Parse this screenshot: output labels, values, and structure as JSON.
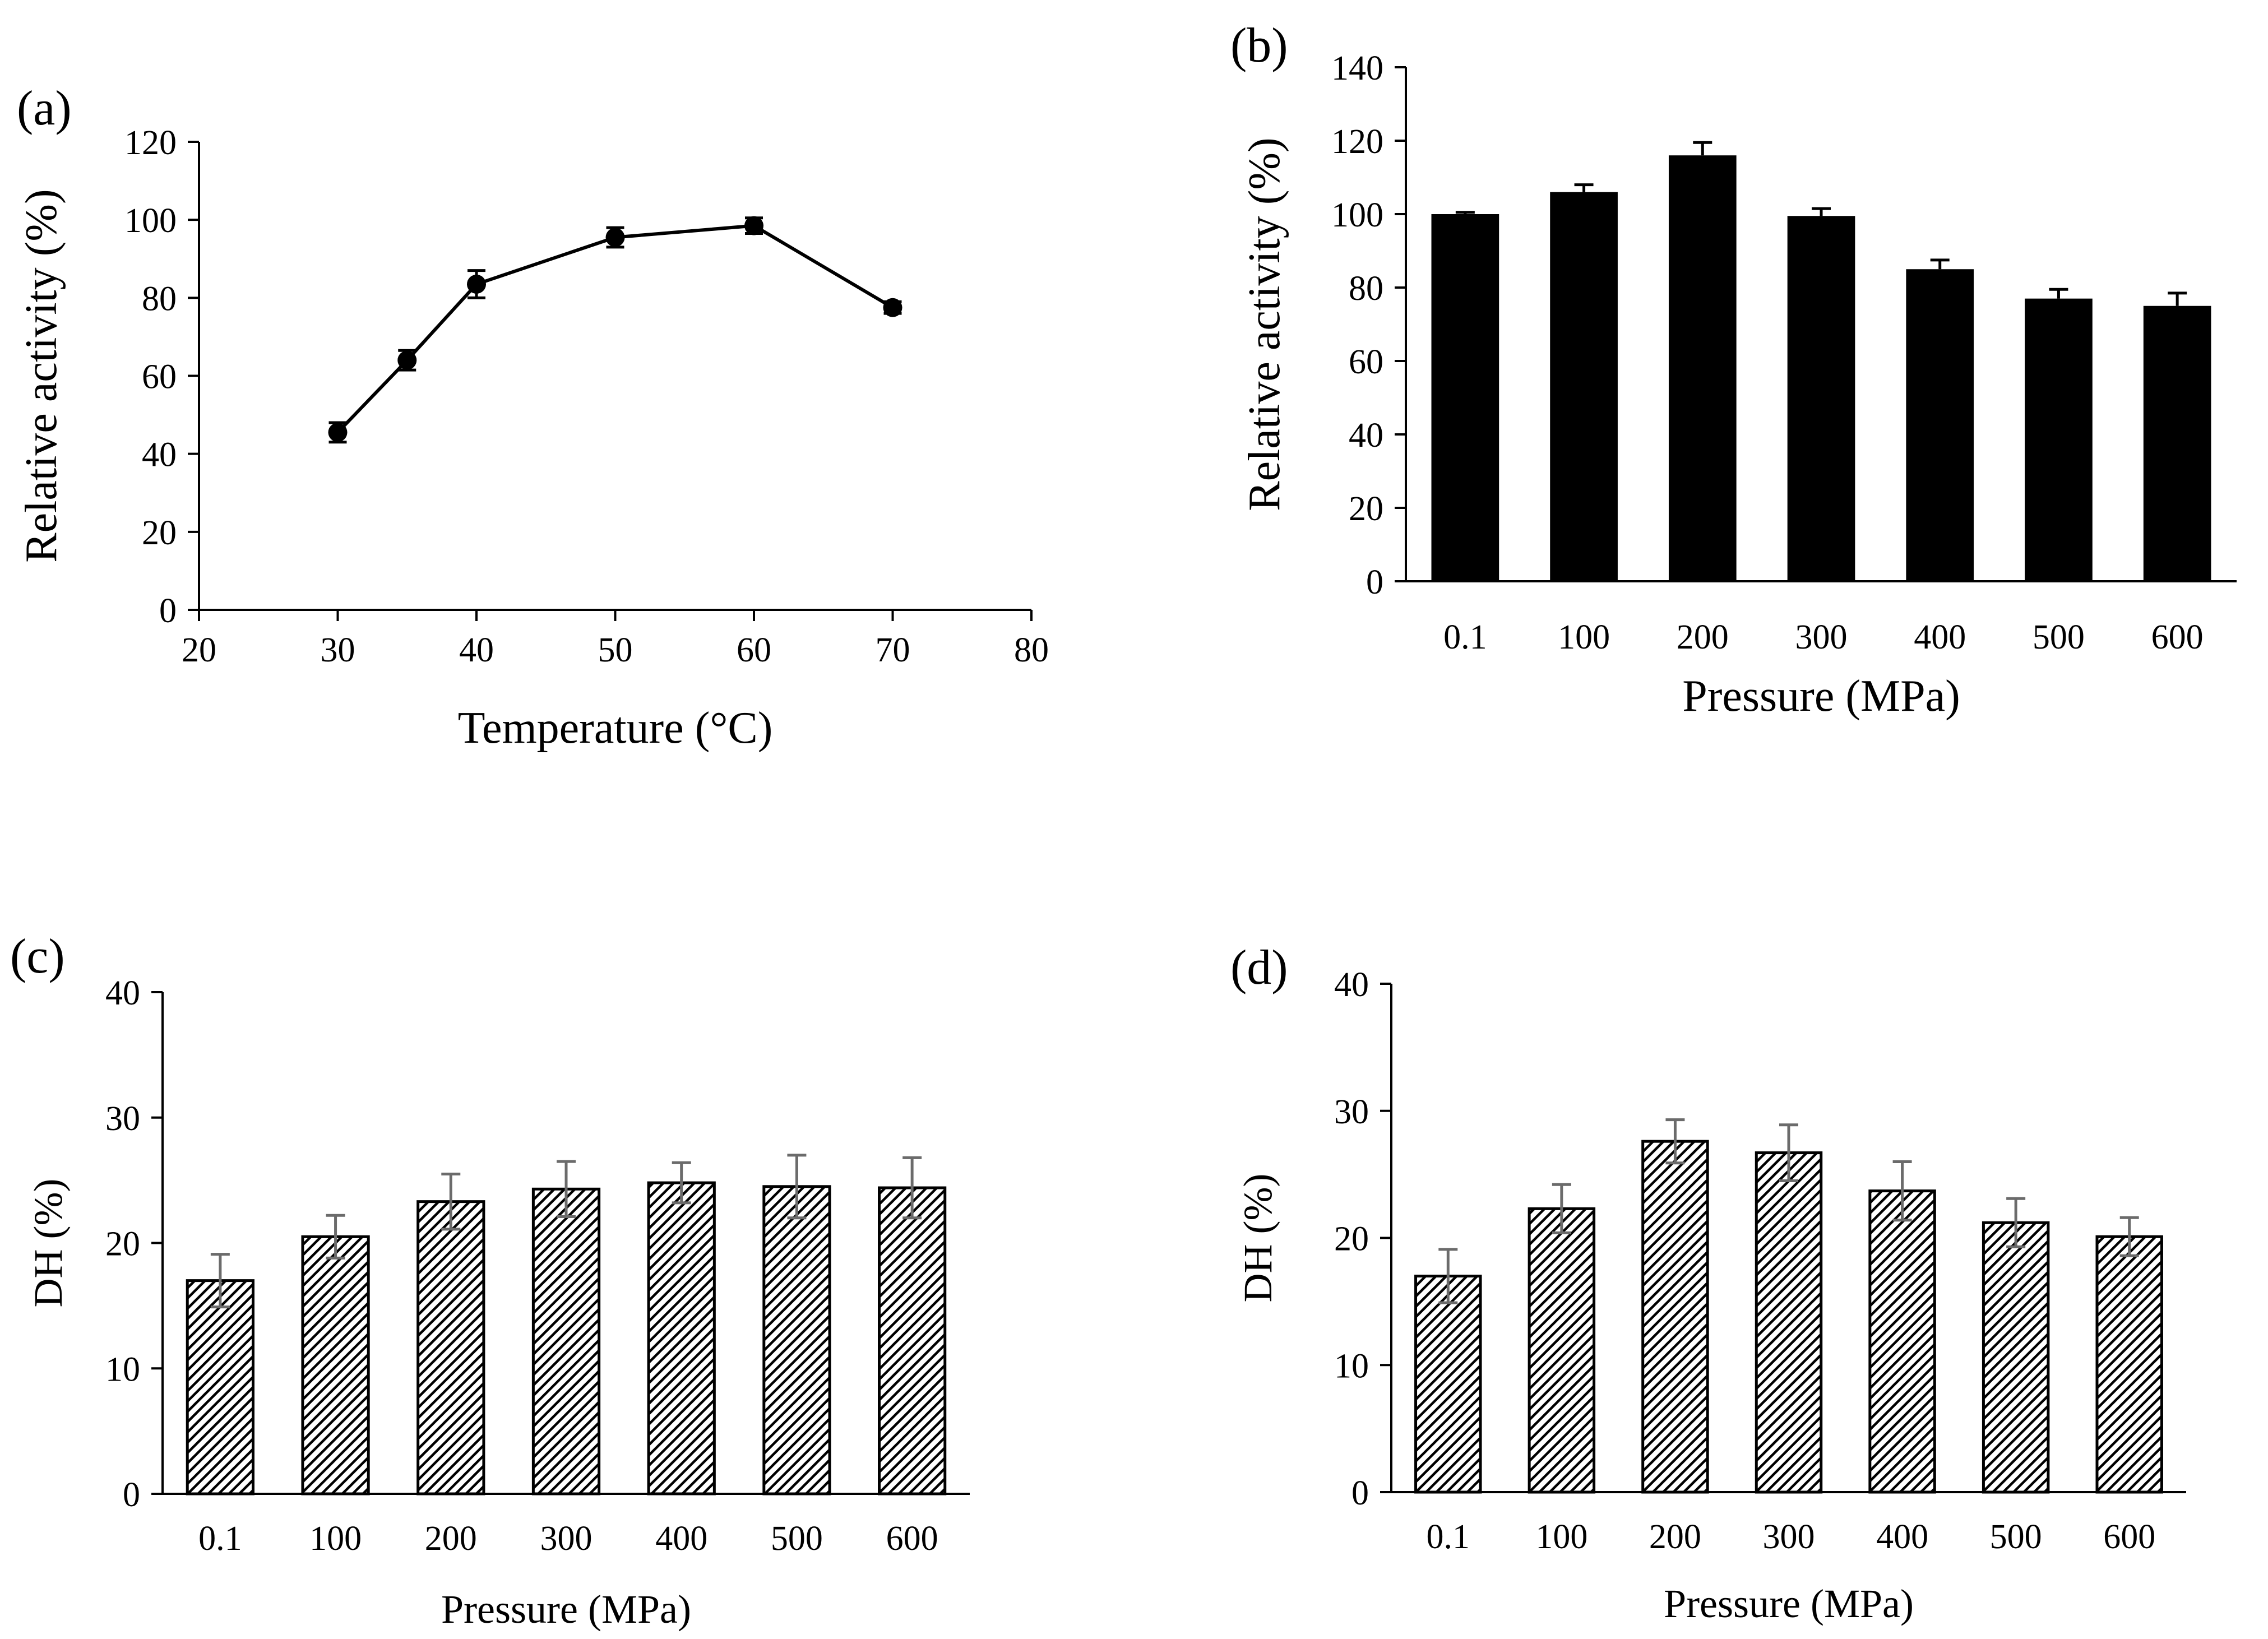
{
  "chart_data": [
    {
      "panel": "(a)",
      "type": "line",
      "xlabel": "Temperature (°C)",
      "ylabel": "Relative activity (%)",
      "xlim": [
        20,
        80
      ],
      "ylim": [
        0,
        120
      ],
      "xticks": [
        20,
        30,
        40,
        50,
        60,
        70,
        80
      ],
      "yticks": [
        0,
        20,
        40,
        60,
        80,
        100,
        120
      ],
      "x": [
        30,
        35,
        40,
        50,
        60,
        70
      ],
      "values": [
        45.5,
        64,
        83.5,
        95.5,
        98.5,
        77.5
      ],
      "errors": [
        2.5,
        2.5,
        3.5,
        2.5,
        2,
        1.5
      ],
      "marker": "circle",
      "grid": false
    },
    {
      "panel": "(b)",
      "type": "bar",
      "xlabel": "Pressure (MPa)",
      "ylabel": "Relative activity (%)",
      "ylim": [
        0,
        140
      ],
      "yticks": [
        0,
        20,
        40,
        60,
        80,
        100,
        120,
        140
      ],
      "categories": [
        "0.1",
        "100",
        "200",
        "300",
        "400",
        "500",
        "600"
      ],
      "values": [
        100,
        106,
        116,
        99.5,
        85,
        77,
        75
      ],
      "errors": [
        0.5,
        2,
        3.5,
        2,
        2.5,
        2.5,
        3.5
      ],
      "fill": "solid",
      "grid": false
    },
    {
      "panel": "(c)",
      "type": "bar",
      "xlabel": "Pressure (MPa)",
      "ylabel": "DH (%)",
      "ylim": [
        0,
        40
      ],
      "yticks": [
        0,
        10,
        20,
        30,
        40
      ],
      "categories": [
        "0.1",
        "100",
        "200",
        "300",
        "400",
        "500",
        "600"
      ],
      "values": [
        17,
        20.5,
        23.3,
        24.3,
        24.8,
        24.5,
        24.4
      ],
      "errors": [
        2.1,
        1.7,
        2.2,
        2.2,
        1.6,
        2.5,
        2.4
      ],
      "fill": "hatched",
      "grid": false
    },
    {
      "panel": "(d)",
      "type": "bar",
      "xlabel": "Pressure (MPa)",
      "ylabel": "DH (%)",
      "ylim": [
        0,
        40
      ],
      "yticks": [
        0,
        10,
        20,
        30,
        40
      ],
      "categories": [
        "0.1",
        "100",
        "200",
        "300",
        "400",
        "500",
        "600"
      ],
      "values": [
        17,
        22.3,
        27.6,
        26.7,
        23.7,
        21.2,
        20.1
      ],
      "errors": [
        2.1,
        1.9,
        1.7,
        2.2,
        2.3,
        1.9,
        1.5
      ],
      "fill": "hatched",
      "grid": false
    }
  ],
  "colors": {
    "ink": "#000000",
    "error_bar_gray": "#6b6b6b",
    "background": "#ffffff"
  }
}
